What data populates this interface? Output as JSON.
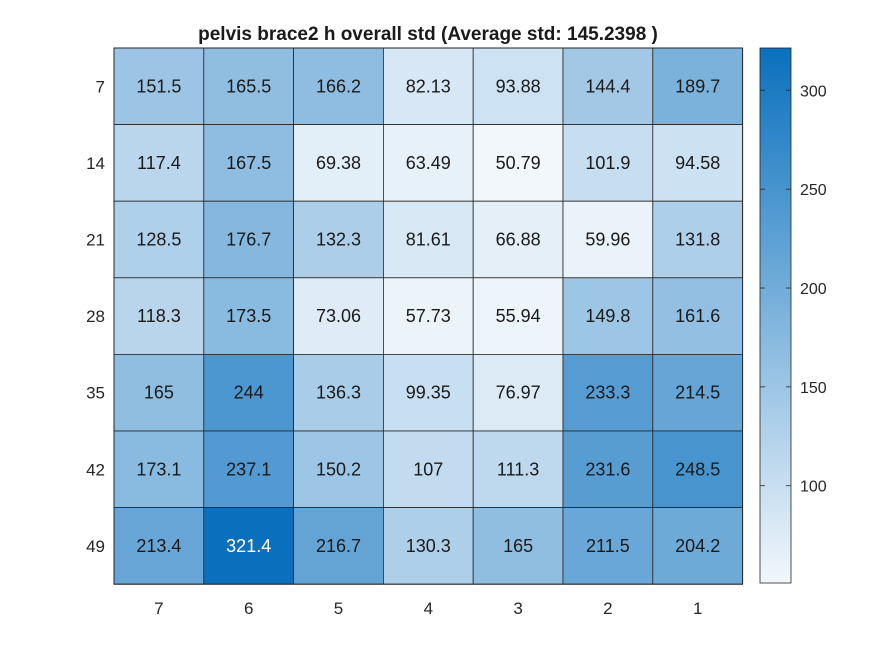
{
  "chart_data": {
    "type": "heatmap",
    "title": "pelvis brace2 h overall std (Average std: 145.2398 )",
    "x_categories": [
      "7",
      "6",
      "5",
      "4",
      "3",
      "2",
      "1"
    ],
    "y_categories": [
      "7",
      "14",
      "21",
      "28",
      "35",
      "42",
      "49"
    ],
    "values": [
      [
        151.5,
        165.5,
        166.2,
        82.13,
        93.88,
        144.4,
        189.7
      ],
      [
        117.4,
        167.5,
        69.38,
        63.49,
        50.79,
        101.9,
        94.58
      ],
      [
        128.5,
        176.7,
        132.3,
        81.61,
        66.88,
        59.96,
        131.8
      ],
      [
        118.3,
        173.5,
        73.06,
        57.73,
        55.94,
        149.8,
        161.6
      ],
      [
        165,
        244,
        136.3,
        99.35,
        76.97,
        233.3,
        214.5
      ],
      [
        173.1,
        237.1,
        150.2,
        107,
        111.3,
        231.6,
        248.5
      ],
      [
        213.4,
        321.4,
        216.7,
        130.3,
        165,
        211.5,
        204.2
      ]
    ],
    "value_labels": [
      [
        "151.5",
        "165.5",
        "166.2",
        "82.13",
        "93.88",
        "144.4",
        "189.7"
      ],
      [
        "117.4",
        "167.5",
        "69.38",
        "63.49",
        "50.79",
        "101.9",
        "94.58"
      ],
      [
        "128.5",
        "176.7",
        "132.3",
        "81.61",
        "66.88",
        "59.96",
        "131.8"
      ],
      [
        "118.3",
        "173.5",
        "73.06",
        "57.73",
        "55.94",
        "149.8",
        "161.6"
      ],
      [
        "165",
        "244",
        "136.3",
        "99.35",
        "76.97",
        "233.3",
        "214.5"
      ],
      [
        "173.1",
        "237.1",
        "150.2",
        "107",
        "111.3",
        "231.6",
        "248.5"
      ],
      [
        "213.4",
        "321.4",
        "216.7",
        "130.3",
        "165",
        "211.5",
        "204.2"
      ]
    ],
    "colorbar": {
      "min": 50.79,
      "max": 321.4,
      "ticks": [
        100,
        150,
        200,
        250,
        300
      ],
      "tick_labels": [
        "100",
        "150",
        "200",
        "250",
        "300"
      ],
      "color_low": "#f2f7fc",
      "color_high": "#0a70bd",
      "placement": "right"
    },
    "text_color_dark": "#1a1a1a",
    "text_color_light": "#ffffff",
    "grid_color": "#262626"
  }
}
